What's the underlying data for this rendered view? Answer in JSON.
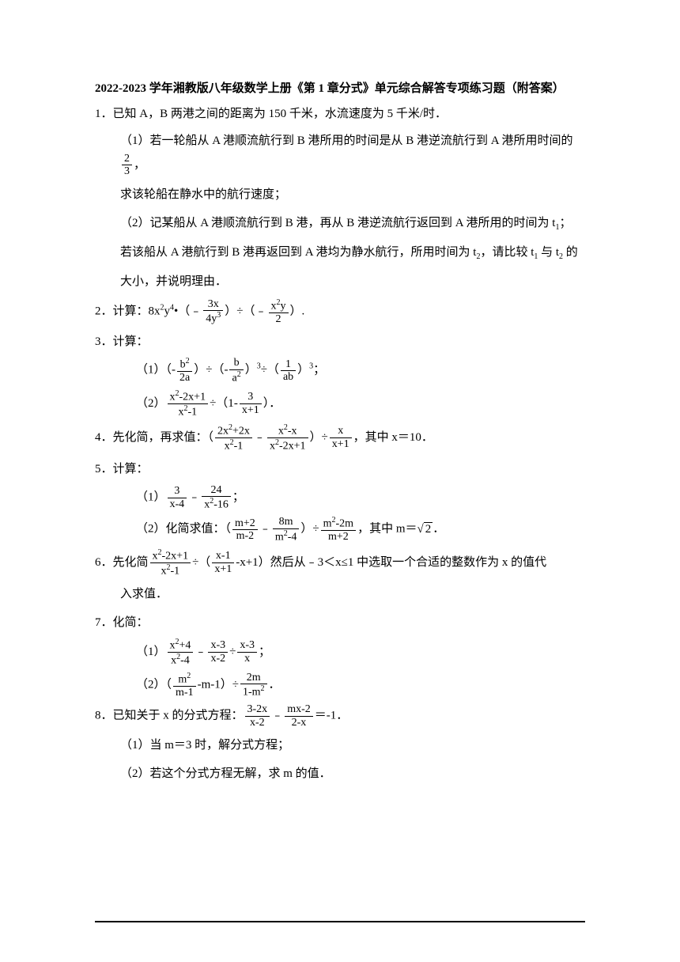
{
  "title": "2022-2023 学年湘教版八年级数学上册《第 1 章分式》单元综合解答专项练习题（附答案）",
  "problems": {
    "p1": {
      "main": "1．已知 A，B 两港之间的距离为 150 千米，水流速度为 5 千米/时．",
      "sub1_prefix": "（1）若一轮船从 A 港顺流航行到 B 港所用的时间是从 B 港逆流航行到 A 港所用时间的",
      "sub1_suffix": "，",
      "sub1_line2": "求该轮船在静水中的航行速度；",
      "sub2": "（2）记某船从 A 港顺流航行到 B 港，再从 B 港逆流航行返回到 A 港所用的时间为 t",
      "sub2_suffix": "；",
      "sub2_line2": "若该船从 A 港航行到 B 港再返回到 A 港均为静水航行，所用时间为 t",
      "sub2_line2_suffix": "，请比较 t",
      "sub2_line2_suffix2": " 与 t",
      "sub2_line2_suffix3": " 的",
      "sub2_line3": "大小，并说明理由．"
    },
    "p2": {
      "prefix": "2．计算：8x",
      "mid1": "y",
      "mid2": "•（﹣",
      "mid3": "）÷（﹣",
      "suffix": "）."
    },
    "p3": {
      "main": "3．计算：",
      "sub1_prefix": "（1）（",
      "sub1_mid1": "）÷（",
      "sub1_mid2": "）",
      "sub1_mid3": "÷（",
      "sub1_mid4": "）",
      "sub1_suffix": "；",
      "sub2_prefix": "（2）",
      "sub2_mid": "÷（1",
      "sub2_suffix": "）．"
    },
    "p4": {
      "prefix": "4．先化简，再求值：（",
      "mid1": "﹣",
      "mid2": "）÷",
      "suffix": "，其中 x＝10．"
    },
    "p5": {
      "main": "5．计算：",
      "sub1_prefix": "（1）",
      "sub1_mid": "﹣",
      "sub1_suffix": "；",
      "sub2_prefix": "（2）化简求值：（",
      "sub2_mid1": "﹣",
      "sub2_mid2": "）÷",
      "sub2_suffix": "，其中 m＝",
      "sub2_end": "．"
    },
    "p6": {
      "prefix": "6．先化简",
      "mid1": "÷（",
      "mid2": "-x+1）然后从﹣3＜x≤1 中选取一个合适的整数作为 x 的值代",
      "line2": "入求值．"
    },
    "p7": {
      "main": "7．化简：",
      "sub1_prefix": "（1）",
      "sub1_mid1": "﹣",
      "sub1_mid2": "÷",
      "sub1_suffix": "；",
      "sub2_prefix": "（2）（",
      "sub2_mid": "-m-1）÷",
      "sub2_suffix": "．"
    },
    "p8": {
      "prefix": "8．已知关于 x 的分式方程：",
      "mid": "﹣",
      "suffix": "＝-1．",
      "sub1": "（1）当 m＝3 时，解分式方程；",
      "sub2": "（2）若这个分式方程无解，求 m 的值．"
    }
  },
  "fractions": {
    "f_2_3": {
      "num": "2",
      "den": "3"
    },
    "f_3x_4y3": {
      "num": "3x",
      "den": "4y"
    },
    "f_x2y_2": {
      "num": "x",
      "den": "2"
    },
    "f_b2_2a": {
      "num": "b",
      "den": "2a"
    },
    "f_b_a2": {
      "num": "b",
      "den": "a"
    },
    "f_1_ab": {
      "num": "1",
      "den": "ab"
    },
    "f_x2m2xp1_x2m1": {
      "num": "x",
      "den": "x"
    },
    "f_3_xp1": {
      "num": "3",
      "den": "x+1"
    },
    "f_2x2p2x_x2m1": {
      "num": "2x",
      "den": "x"
    },
    "f_x2mx_x2m2xp1": {
      "num": "x",
      "den": "x"
    },
    "f_x_xp1": {
      "num": "x",
      "den": "x+1"
    },
    "f_3_xm4": {
      "num": "3",
      "den": "x-4"
    },
    "f_24_x2m16": {
      "num": "24",
      "den": "x"
    },
    "f_mp2_mm2": {
      "num": "m+2",
      "den": "m-2"
    },
    "f_8m_m2m4": {
      "num": "8m",
      "den": "m"
    },
    "f_m2m2m_mp2": {
      "num": "m",
      "den": "m+2"
    },
    "f_x2m2xp1_x2m1_b": {
      "num": "x",
      "den": "x"
    },
    "f_xm1_xp1": {
      "num": "x-1",
      "den": "x+1"
    },
    "f_x2p4_x2m4": {
      "num": "x",
      "den": "x"
    },
    "f_xm3_xm2": {
      "num": "x-3",
      "den": "x-2"
    },
    "f_xm3_x": {
      "num": "x-3",
      "den": "x"
    },
    "f_m2_mm1": {
      "num": "m",
      "den": "m-1"
    },
    "f_2m_1mm2": {
      "num": "2m",
      "den": "1-m"
    },
    "f_3m2x_xm2": {
      "num": "3-2x",
      "den": "x-2"
    },
    "f_mxm2_2mx": {
      "num": "mx-2",
      "den": "2-x"
    }
  },
  "sqrt2": "2",
  "colors": {
    "text": "#000000",
    "background": "#ffffff"
  }
}
